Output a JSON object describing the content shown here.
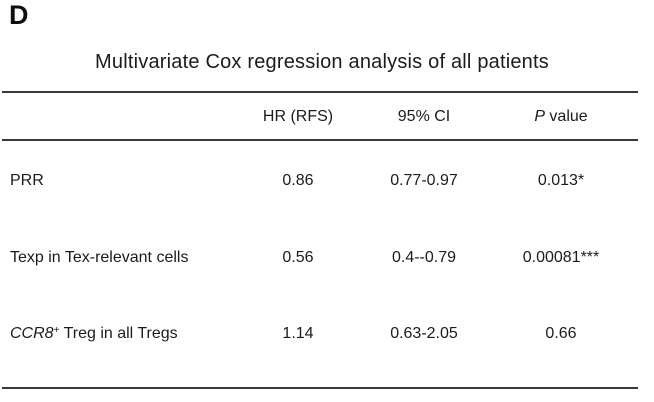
{
  "panel_label": "D",
  "table": {
    "title": "Multivariate Cox regression analysis of all patients",
    "header": {
      "hr": "HR (RFS)",
      "ci": "95% CI",
      "p_italic": "P",
      "p_rest": " value"
    },
    "rows": [
      {
        "label": "PRR",
        "hr": "0.86",
        "ci": "0.77-0.97",
        "p": "0.013*"
      },
      {
        "label": "Texp in Tex-relevant cells",
        "hr": "0.56",
        "ci": "0.4--0.79",
        "p": "0.00081***"
      },
      {
        "label_italic": "CCR8",
        "label_sup": "+",
        "label_rest": " Treg in all Tregs",
        "hr": "1.14",
        "ci": "0.63-2.05",
        "p": "0.66"
      }
    ]
  },
  "colors": {
    "background": "#ffffff",
    "text": "#1b1b1b",
    "rule": "#3a3a3a"
  }
}
